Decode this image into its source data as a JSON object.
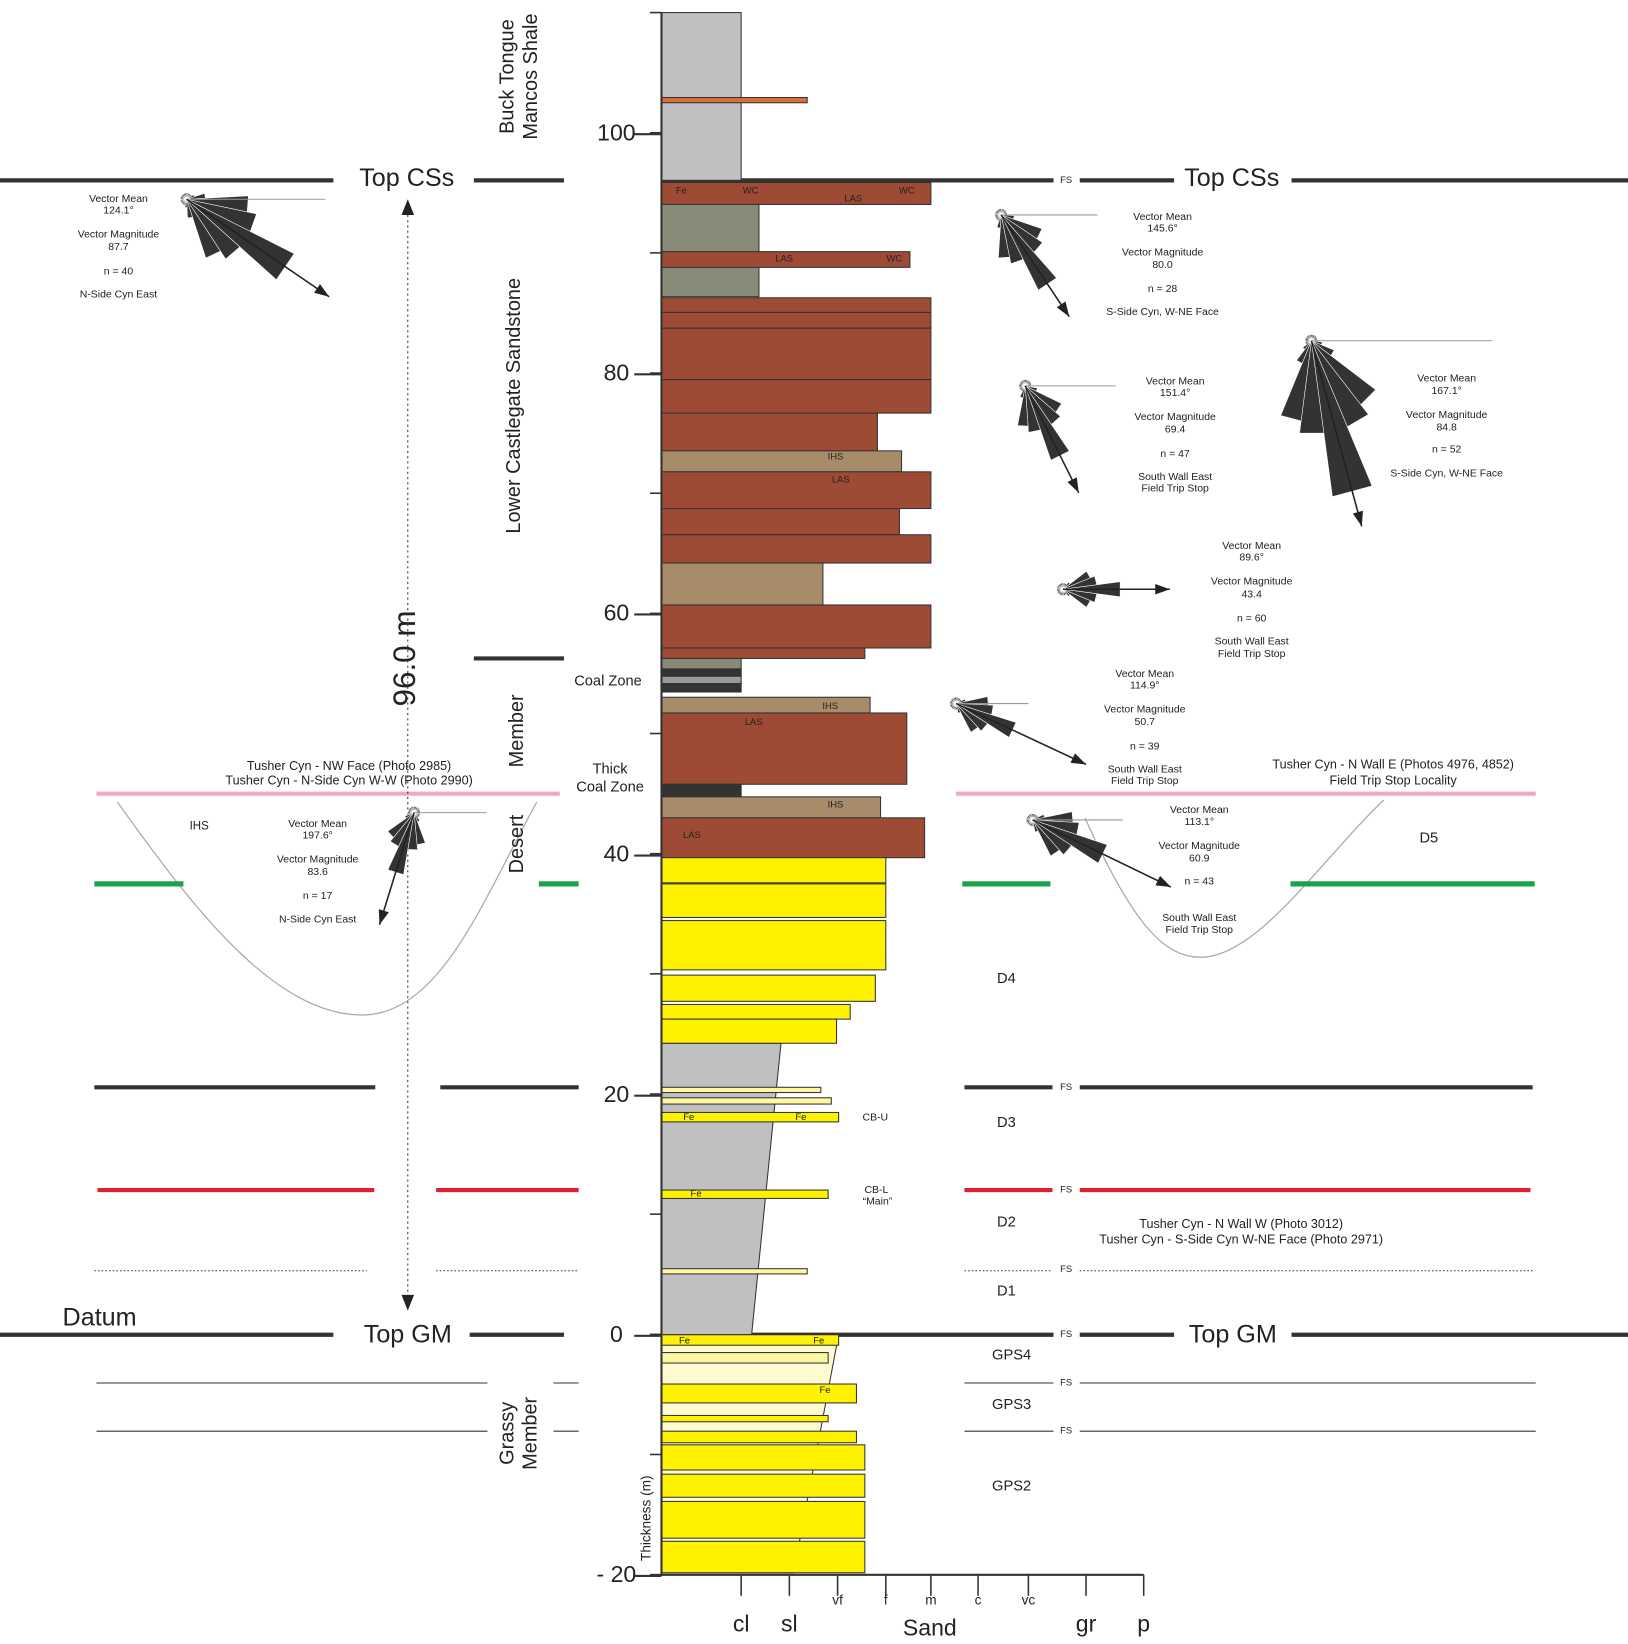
{
  "formations": {
    "buck_tongue": [
      "Buck Tongue",
      "Mancos Shale"
    ],
    "lower_castlegate": "Lower Castlegate Sandstone",
    "desert": [
      "Desert",
      "Member"
    ],
    "grassy": [
      "Grassy",
      "Member"
    ]
  },
  "horizons": {
    "top_css": "Top CSs",
    "top_gm": "Top GM",
    "datum": "Datum",
    "thickness_total": "96.0 m",
    "fs": "FS"
  },
  "axis": {
    "title": "Thickness (m)",
    "ticks": [
      "100",
      "80",
      "60",
      "40",
      "20",
      "0",
      "- 20"
    ],
    "grain_sizes_small": [
      "vf",
      "f",
      "m",
      "c",
      "vc"
    ],
    "grain_sizes_large": [
      "cl",
      "sl",
      "gr",
      "p"
    ],
    "sand": "Sand"
  },
  "zones": {
    "coal_zone": "Coal Zone",
    "thick_coal_zone": [
      "Thick",
      "Coal Zone"
    ]
  },
  "units": [
    "D5",
    "D4",
    "D3",
    "D2",
    "D1",
    "GPS4",
    "GPS3",
    "GPS2"
  ],
  "beds": [
    "CB-U",
    "CB-L",
    "“Main”"
  ],
  "photo_notes": [
    "Tusher Cyn - NW Face  (Photo 2985)",
    "Tusher Cyn - N-Side Cyn W-W  (Photo 2990)",
    "Tusher Cyn - N Wall E  (Photos 4976, 4852)",
    "Field Trip Stop Locality",
    "Tusher Cyn - N Wall W  (Photo 3012)",
    "Tusher Cyn - S-Side Cyn W-NE Face  (Photo 2971)"
  ],
  "facies_labels": [
    "Fe",
    "WC",
    "LAS",
    "WC",
    "LAS",
    "WC",
    "IHS",
    "LAS",
    "IHS",
    "LAS",
    "IHS",
    "LAS",
    "Fe",
    "Fe",
    "Fe",
    "Fe",
    "Fe",
    "Fe",
    "IHS"
  ],
  "roses": [
    {
      "lines": [
        "Vector Mean",
        "124.1°",
        "Vector Magnitude",
        "87.7",
        "n = 40",
        "N-Side Cyn East"
      ]
    },
    {
      "lines": [
        "Vector Mean",
        "145.6°",
        "Vector Magnitude",
        "80.0",
        "n = 28",
        "S-Side Cyn, W-NE Face"
      ]
    },
    {
      "lines": [
        "Vector Mean",
        "151.4°",
        "Vector Magnitude",
        "69.4",
        "n = 47",
        "South Wall East",
        "Field Trip Stop"
      ]
    },
    {
      "lines": [
        "Vector Mean",
        "167.1°",
        "Vector Magnitude",
        "84.8",
        "n = 52",
        "S-Side Cyn, W-NE Face"
      ]
    },
    {
      "lines": [
        "Vector Mean",
        "89.6°",
        "Vector Magnitude",
        "43.4",
        "n = 60",
        "South Wall East",
        "Field Trip Stop"
      ]
    },
    {
      "lines": [
        "Vector Mean",
        "114.9°",
        "Vector Magnitude",
        "50.7",
        "n = 39",
        "South Wall East",
        "Field Trip Stop"
      ]
    },
    {
      "lines": [
        "Vector Mean",
        "113.1°",
        "Vector Magnitude",
        "60.9",
        "n = 43",
        "South Wall East",
        "Field Trip Stop"
      ]
    },
    {
      "lines": [
        "Vector Mean",
        "197.6°",
        "Vector Magnitude",
        "83.6",
        "n = 17",
        "N-Side Cyn East"
      ]
    }
  ]
}
